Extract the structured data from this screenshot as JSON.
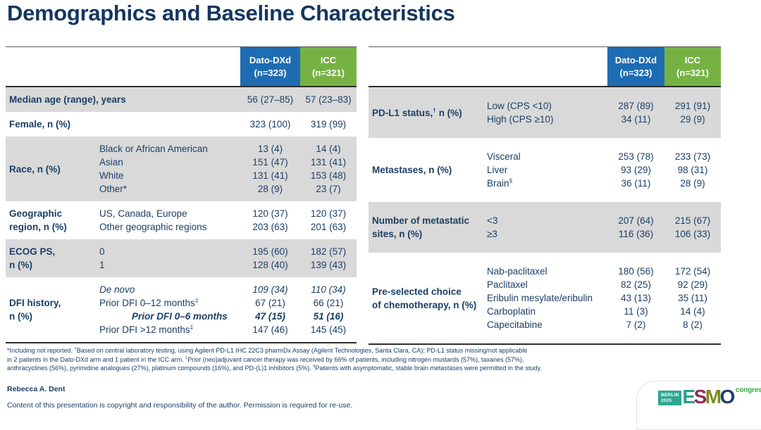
{
  "slide": {
    "title": "Demographics and Baseline Characteristics",
    "author": "Rebecca A. Dent",
    "copyright": "Content of this presentation is copyright and responsibility of the author. Permission is required for re-use."
  },
  "colors": {
    "title_navy": "#14365f",
    "text_navy": "#1b3f66",
    "dato_header": "#1e6cb2",
    "icc_header": "#76b243",
    "row_shade": "#d9d9d9",
    "rule_dark": "#2e2e2e",
    "rule_light": "#595959"
  },
  "tables": {
    "left": {
      "header": {
        "dato": [
          "Dato-DXd",
          "(n=323)"
        ],
        "icc": [
          "ICC",
          "(n=321)"
        ]
      },
      "rows": [
        {
          "label": "Median age (range), years",
          "shade": true,
          "items": [
            {
              "sub": "",
              "a": "56 (27–85)",
              "b": "57 (23–83)"
            }
          ]
        },
        {
          "label": "Female, n (%)",
          "shade": false,
          "items": [
            {
              "sub": "",
              "a": "323 (100)",
              "b": "319 (99)"
            }
          ]
        },
        {
          "label": "Race, n (%)",
          "shade": true,
          "items": [
            {
              "sub": "Black or African American",
              "a": "13 (4)",
              "b": "14 (4)"
            },
            {
              "sub": "Asian",
              "a": "151 (47)",
              "b": "131 (41)"
            },
            {
              "sub": "White",
              "a": "131 (41)",
              "b": "153 (48)"
            },
            {
              "sub": "Other*",
              "a": "28 (9)",
              "b": "23 (7)"
            }
          ]
        },
        {
          "label": "Geographic\nregion, n (%)",
          "shade": false,
          "items": [
            {
              "sub": "US, Canada, Europe",
              "a": "120 (37)",
              "b": "120 (37)"
            },
            {
              "sub": "Other geographic regions",
              "a": "203 (63)",
              "b": "201 (63)"
            }
          ]
        },
        {
          "label": "ECOG PS,\nn (%)",
          "shade": true,
          "items": [
            {
              "sub": "0",
              "a": "195 (60)",
              "b": "182 (57)"
            },
            {
              "sub": "1",
              "a": "128 (40)",
              "b": "139 (43)"
            }
          ]
        },
        {
          "label": "DFI history,\nn (%)",
          "shade": false,
          "items": [
            {
              "sub": "De novo",
              "a": "109 (34)",
              "b": "110 (34)",
              "italic": true
            },
            {
              "sub": "Prior DFI 0–12 months^‡^",
              "a": "67 (21)",
              "b": "66 (21)"
            },
            {
              "sub": "Prior DFI 0–6 months",
              "a": "47 (15)",
              "b": "51 (16)",
              "italic": true,
              "bold": true,
              "indent": true
            },
            {
              "sub": "Prior DFI >12 months^‡^",
              "a": "147 (46)",
              "b": "145 (45)"
            }
          ]
        }
      ]
    },
    "right": {
      "header": {
        "dato": [
          "Dato-DXd",
          "(n=323)"
        ],
        "icc": [
          "ICC",
          "(n=321)"
        ]
      },
      "rows": [
        {
          "label": "PD-L1 status,^†^ n (%)",
          "shade": true,
          "items": [
            {
              "sub": "Low (CPS <10)",
              "a": "287 (89)",
              "b": "291 (91)"
            },
            {
              "sub": "High (CPS ≥10)",
              "a": "34 (11)",
              "b": "29 (9)"
            }
          ]
        },
        {
          "label": "Metastases, n (%)",
          "shade": false,
          "items": [
            {
              "sub": "Visceral",
              "a": "253 (78)",
              "b": "233 (73)"
            },
            {
              "sub": "Liver",
              "a": "93 (29)",
              "b": "98 (31)"
            },
            {
              "sub": "Brain^§^",
              "a": "36 (11)",
              "b": "28 (9)"
            }
          ]
        },
        {
          "label": "Number of metastatic\nsites, n (%)",
          "shade": true,
          "items": [
            {
              "sub": "<3",
              "a": "207 (64)",
              "b": "215 (67)"
            },
            {
              "sub": "≥3",
              "a": "116 (36)",
              "b": "106 (33)"
            }
          ]
        },
        {
          "label": "Pre-selected choice\nof chemotherapy, n (%)",
          "shade": false,
          "items": [
            {
              "sub": "Nab-paclitaxel",
              "a": "180 (56)",
              "b": "172 (54)"
            },
            {
              "sub": "Paclitaxel",
              "a": "82 (25)",
              "b": "92 (29)"
            },
            {
              "sub": "Eribulin mesylate/eribulin",
              "a": "43 (13)",
              "b": "35 (11)"
            },
            {
              "sub": "Carboplatin",
              "a": "11 (3)",
              "b": "14 (4)"
            },
            {
              "sub": "Capecitabine",
              "a": "7 (2)",
              "b": "8 (2)"
            }
          ]
        }
      ]
    }
  },
  "footnote_lines": [
    "*Including not reported. ^†^Based on central laboratory testing, using Agilent PD-L1 IHC 22C3 pharmDx Assay (Agilent Technologies, Santa Clara, CA); PD-L1 status missing/not applicable",
    "in 2 patients in the Dato-DXd arm and 1 patient in the ICC arm. ^‡^Prior (neo)adjuvant cancer therapy was received by 66% of patients, including nitrogen mustards (57%), taxanes (57%),",
    "anthracyclines (56%), pyrimidine analogues (27%), platinum compounds (16%), and PD-(L)1 inhibitors (5%). ^§^Patients with asymptomatic, stable brain metastases were permitted in the study."
  ],
  "logo": {
    "venue": [
      "BERLIN",
      "2025"
    ],
    "venue_bg": "#2fa58f",
    "brand_letters": [
      {
        "ch": "E",
        "color": "#2a9d8b"
      },
      {
        "ch": "S",
        "color": "#8e2a58"
      },
      {
        "ch": "M",
        "color": "#7d8b21"
      },
      {
        "ch": "O",
        "color": "#1c416f"
      }
    ],
    "suffix": "congress",
    "suffix_color": "#3da444"
  }
}
